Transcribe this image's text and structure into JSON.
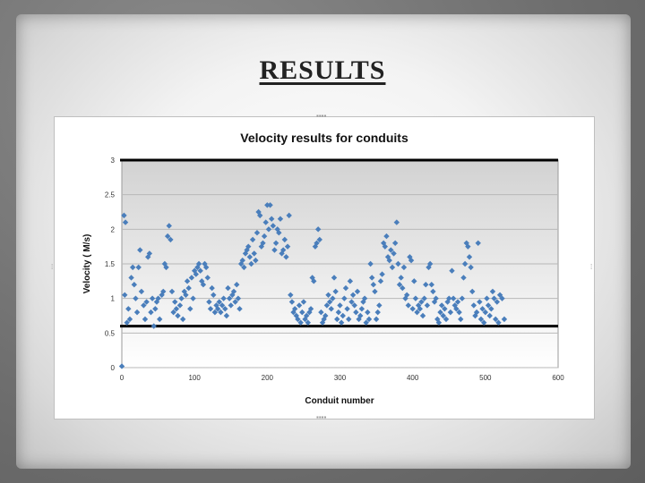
{
  "slide": {
    "title": "RESULTS "
  },
  "chart_data": {
    "type": "scatter",
    "title": "Velocity results for conduits",
    "xlabel": "Conduit number",
    "ylabel": "Velocity ( M/s)",
    "xlim": [
      0,
      600
    ],
    "ylim": [
      0,
      3
    ],
    "xticks": [
      0,
      100,
      200,
      300,
      400,
      500,
      600
    ],
    "xtick_labels": [
      "0",
      "100",
      "200",
      "300",
      "400",
      "500",
      "600"
    ],
    "yticks": [
      0,
      0.5,
      1,
      1.5,
      2,
      2.5,
      3
    ],
    "ytick_labels": [
      "0",
      "0.5",
      "1",
      "1.5",
      "2",
      "2.5",
      "3"
    ],
    "grid": true,
    "legend": "none",
    "marker_color": "#4a7ebb",
    "reference_lines": [
      {
        "y": 3.0,
        "color": "#000000"
      },
      {
        "y": 0.6,
        "color": "#000000"
      }
    ],
    "series": [
      {
        "points": [
          [
            0,
            0.02
          ],
          [
            3,
            2.2
          ],
          [
            5,
            2.1
          ],
          [
            4,
            1.05
          ],
          [
            7,
            0.65
          ],
          [
            9,
            0.85
          ],
          [
            11,
            0.7
          ],
          [
            13,
            1.3
          ],
          [
            15,
            1.45
          ],
          [
            17,
            1.2
          ],
          [
            19,
            1.0
          ],
          [
            21,
            0.8
          ],
          [
            23,
            1.45
          ],
          [
            25,
            1.7
          ],
          [
            27,
            1.1
          ],
          [
            30,
            0.9
          ],
          [
            32,
            0.7
          ],
          [
            34,
            0.95
          ],
          [
            36,
            1.6
          ],
          [
            38,
            1.65
          ],
          [
            40,
            0.8
          ],
          [
            42,
            1.0
          ],
          [
            44,
            0.6
          ],
          [
            46,
            0.85
          ],
          [
            48,
            0.95
          ],
          [
            50,
            1.0
          ],
          [
            52,
            0.7
          ],
          [
            55,
            1.05
          ],
          [
            57,
            1.1
          ],
          [
            59,
            1.5
          ],
          [
            61,
            1.45
          ],
          [
            63,
            1.9
          ],
          [
            65,
            2.05
          ],
          [
            67,
            1.85
          ],
          [
            69,
            1.1
          ],
          [
            71,
            0.8
          ],
          [
            73,
            0.95
          ],
          [
            75,
            0.85
          ],
          [
            77,
            0.75
          ],
          [
            80,
            0.9
          ],
          [
            82,
            1.0
          ],
          [
            84,
            0.7
          ],
          [
            86,
            1.1
          ],
          [
            88,
            1.05
          ],
          [
            90,
            1.25
          ],
          [
            92,
            1.15
          ],
          [
            94,
            0.85
          ],
          [
            96,
            1.3
          ],
          [
            98,
            1.0
          ],
          [
            100,
            1.4
          ],
          [
            102,
            1.35
          ],
          [
            104,
            1.45
          ],
          [
            106,
            1.5
          ],
          [
            108,
            1.4
          ],
          [
            110,
            1.25
          ],
          [
            112,
            1.2
          ],
          [
            114,
            1.5
          ],
          [
            116,
            1.45
          ],
          [
            118,
            1.3
          ],
          [
            120,
            0.95
          ],
          [
            122,
            0.85
          ],
          [
            124,
            1.15
          ],
          [
            126,
            1.05
          ],
          [
            128,
            0.8
          ],
          [
            130,
            0.9
          ],
          [
            132,
            0.85
          ],
          [
            134,
            0.95
          ],
          [
            136,
            0.8
          ],
          [
            138,
            0.9
          ],
          [
            140,
            1.0
          ],
          [
            142,
            0.85
          ],
          [
            144,
            0.75
          ],
          [
            146,
            1.15
          ],
          [
            148,
            1.0
          ],
          [
            150,
            0.9
          ],
          [
            152,
            1.05
          ],
          [
            154,
            1.1
          ],
          [
            156,
            0.95
          ],
          [
            158,
            1.2
          ],
          [
            160,
            1.0
          ],
          [
            162,
            0.85
          ],
          [
            164,
            1.5
          ],
          [
            166,
            1.55
          ],
          [
            168,
            1.45
          ],
          [
            170,
            1.65
          ],
          [
            172,
            1.7
          ],
          [
            174,
            1.75
          ],
          [
            176,
            1.6
          ],
          [
            178,
            1.5
          ],
          [
            180,
            1.85
          ],
          [
            182,
            1.65
          ],
          [
            184,
            1.55
          ],
          [
            186,
            1.95
          ],
          [
            188,
            2.25
          ],
          [
            190,
            2.2
          ],
          [
            192,
            1.75
          ],
          [
            194,
            1.8
          ],
          [
            196,
            1.9
          ],
          [
            198,
            2.1
          ],
          [
            200,
            2.35
          ],
          [
            202,
            2.0
          ],
          [
            204,
            2.35
          ],
          [
            206,
            2.15
          ],
          [
            208,
            2.05
          ],
          [
            210,
            1.7
          ],
          [
            212,
            1.8
          ],
          [
            214,
            2.0
          ],
          [
            216,
            1.95
          ],
          [
            218,
            2.15
          ],
          [
            220,
            1.65
          ],
          [
            222,
            1.7
          ],
          [
            224,
            1.85
          ],
          [
            226,
            1.6
          ],
          [
            228,
            1.75
          ],
          [
            230,
            2.2
          ],
          [
            232,
            1.05
          ],
          [
            234,
            0.95
          ],
          [
            236,
            0.8
          ],
          [
            238,
            0.85
          ],
          [
            240,
            0.75
          ],
          [
            242,
            0.7
          ],
          [
            244,
            0.9
          ],
          [
            246,
            0.65
          ],
          [
            248,
            0.8
          ],
          [
            250,
            0.95
          ],
          [
            252,
            0.7
          ],
          [
            254,
            0.75
          ],
          [
            256,
            0.65
          ],
          [
            258,
            0.8
          ],
          [
            260,
            0.85
          ],
          [
            262,
            1.3
          ],
          [
            264,
            1.25
          ],
          [
            266,
            1.75
          ],
          [
            268,
            1.8
          ],
          [
            270,
            2.0
          ],
          [
            272,
            1.85
          ],
          [
            274,
            0.8
          ],
          [
            276,
            0.65
          ],
          [
            278,
            0.7
          ],
          [
            280,
            0.75
          ],
          [
            282,
            0.9
          ],
          [
            284,
            1.05
          ],
          [
            286,
            0.95
          ],
          [
            288,
            0.85
          ],
          [
            290,
            1.0
          ],
          [
            292,
            1.3
          ],
          [
            294,
            1.1
          ],
          [
            296,
            0.7
          ],
          [
            298,
            0.8
          ],
          [
            300,
            0.9
          ],
          [
            302,
            0.65
          ],
          [
            304,
            0.75
          ],
          [
            306,
            1.0
          ],
          [
            308,
            1.15
          ],
          [
            310,
            0.85
          ],
          [
            312,
            0.7
          ],
          [
            314,
            1.25
          ],
          [
            316,
            0.95
          ],
          [
            318,
            1.05
          ],
          [
            320,
            0.9
          ],
          [
            322,
            0.8
          ],
          [
            324,
            1.1
          ],
          [
            326,
            0.7
          ],
          [
            328,
            0.75
          ],
          [
            330,
            0.85
          ],
          [
            332,
            0.95
          ],
          [
            334,
            1.0
          ],
          [
            336,
            0.65
          ],
          [
            338,
            0.8
          ],
          [
            340,
            0.7
          ],
          [
            342,
            1.5
          ],
          [
            344,
            1.3
          ],
          [
            346,
            1.2
          ],
          [
            348,
            1.1
          ],
          [
            350,
            0.7
          ],
          [
            352,
            0.8
          ],
          [
            354,
            0.9
          ],
          [
            356,
            1.25
          ],
          [
            358,
            1.35
          ],
          [
            360,
            1.8
          ],
          [
            362,
            1.75
          ],
          [
            364,
            1.9
          ],
          [
            366,
            1.6
          ],
          [
            368,
            1.55
          ],
          [
            370,
            1.7
          ],
          [
            372,
            1.45
          ],
          [
            374,
            1.65
          ],
          [
            376,
            1.8
          ],
          [
            378,
            2.1
          ],
          [
            380,
            1.5
          ],
          [
            382,
            1.2
          ],
          [
            384,
            1.3
          ],
          [
            386,
            1.15
          ],
          [
            388,
            1.45
          ],
          [
            390,
            1.0
          ],
          [
            392,
            1.05
          ],
          [
            394,
            0.9
          ],
          [
            396,
            1.6
          ],
          [
            398,
            1.55
          ],
          [
            400,
            0.85
          ],
          [
            402,
            1.25
          ],
          [
            404,
            1.0
          ],
          [
            406,
            0.8
          ],
          [
            408,
            0.9
          ],
          [
            410,
            0.85
          ],
          [
            412,
            0.95
          ],
          [
            414,
            0.75
          ],
          [
            416,
            1.0
          ],
          [
            418,
            1.2
          ],
          [
            420,
            0.9
          ],
          [
            422,
            1.45
          ],
          [
            424,
            1.5
          ],
          [
            426,
            1.2
          ],
          [
            428,
            1.1
          ],
          [
            430,
            0.95
          ],
          [
            432,
            1.0
          ],
          [
            434,
            0.7
          ],
          [
            436,
            0.65
          ],
          [
            438,
            0.8
          ],
          [
            440,
            0.9
          ],
          [
            442,
            0.75
          ],
          [
            444,
            0.85
          ],
          [
            446,
            0.7
          ],
          [
            448,
            0.95
          ],
          [
            450,
            1.0
          ],
          [
            452,
            0.8
          ],
          [
            454,
            1.4
          ],
          [
            456,
            1.0
          ],
          [
            458,
            0.9
          ],
          [
            460,
            0.85
          ],
          [
            462,
            0.95
          ],
          [
            464,
            0.8
          ],
          [
            466,
            0.7
          ],
          [
            468,
            1.0
          ],
          [
            470,
            1.3
          ],
          [
            472,
            1.5
          ],
          [
            474,
            1.8
          ],
          [
            476,
            1.75
          ],
          [
            478,
            1.6
          ],
          [
            480,
            1.45
          ],
          [
            482,
            1.1
          ],
          [
            484,
            0.9
          ],
          [
            486,
            0.75
          ],
          [
            488,
            0.8
          ],
          [
            490,
            1.8
          ],
          [
            492,
            0.95
          ],
          [
            494,
            0.7
          ],
          [
            496,
            0.85
          ],
          [
            498,
            0.65
          ],
          [
            500,
            0.8
          ],
          [
            502,
            1.0
          ],
          [
            504,
            0.9
          ],
          [
            506,
            0.75
          ],
          [
            508,
            0.85
          ],
          [
            510,
            1.1
          ],
          [
            512,
            1.0
          ],
          [
            514,
            0.7
          ],
          [
            516,
            0.95
          ],
          [
            518,
            0.65
          ],
          [
            520,
            1.05
          ],
          [
            523,
            1.0
          ],
          [
            526,
            0.7
          ]
        ]
      }
    ]
  }
}
